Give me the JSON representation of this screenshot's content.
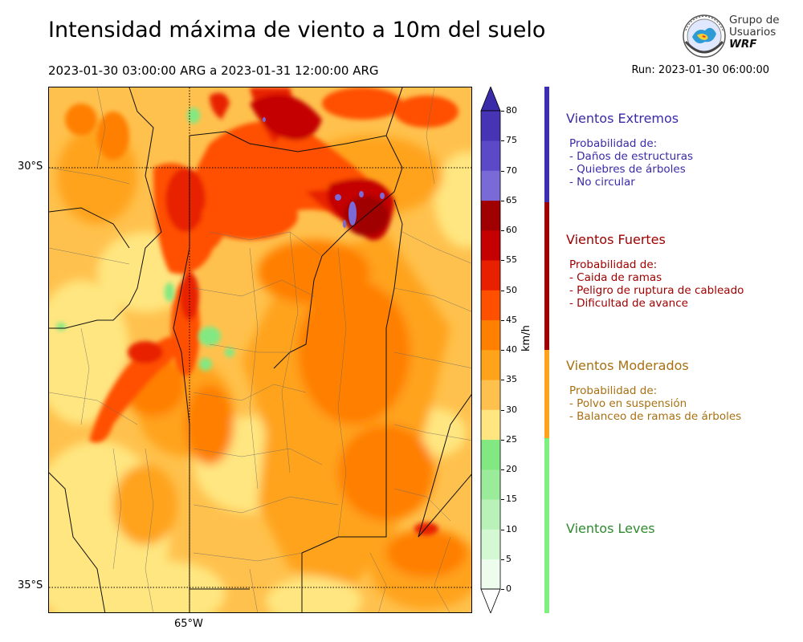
{
  "title": "Intensidad máxima de viento a 10m del suelo",
  "period": "2023-01-30 03:00:00 ARG  a  2023-01-31 12:00:00 ARG",
  "run": "Run: 2023-01-30 06:00:00",
  "logo": {
    "line1": "Grupo de",
    "line2": "Usuarios",
    "line3": "WRF"
  },
  "map": {
    "lat_labels": [
      "30°S",
      "35°S"
    ],
    "lon_labels": [
      "65°W"
    ]
  },
  "colorbar": {
    "unit": "km/h",
    "ticks": [
      "0",
      "5",
      "10",
      "15",
      "20",
      "25",
      "30",
      "35",
      "40",
      "45",
      "50",
      "55",
      "60",
      "65",
      "70",
      "75",
      "80"
    ],
    "colors": [
      "#eefcee",
      "#d4f8d4",
      "#b8f2b8",
      "#9aec9a",
      "#82e882",
      "#ffe680",
      "#ffc14d",
      "#ffa31a",
      "#ff7f00",
      "#ff5000",
      "#e82000",
      "#c40000",
      "#a00000",
      "#7a6ad8",
      "#5a4ac8",
      "#4535b5"
    ],
    "extend_low": "#ffffff",
    "extend_high": "#3a2ba8"
  },
  "categories": [
    {
      "title": "Vientos Extremos",
      "color": "#3a2aa8",
      "desc": [
        "Probabilidad de:",
        "- Daños de estructuras",
        "- Quiebres de árboles",
        "- No circular"
      ]
    },
    {
      "title": "Vientos Fuertes",
      "color": "#a00000",
      "desc": [
        "Probabilidad de:",
        "- Caida de ramas",
        "- Peligro de ruptura de cableado",
        "- Dificultad de avance"
      ]
    },
    {
      "title": "Vientos Moderados",
      "color": "#a87012",
      "desc": [
        "Probabilidad de:",
        "- Polvo en suspensión",
        "- Balanceo de ramas de árboles"
      ]
    },
    {
      "title": "Vientos Leves",
      "color": "#2e8b2e",
      "desc": []
    }
  ],
  "bands": {
    "extreme": "#3d2eb0",
    "strong": "#a00000",
    "moderate": "#ffa31a",
    "light": "#7df07d"
  }
}
